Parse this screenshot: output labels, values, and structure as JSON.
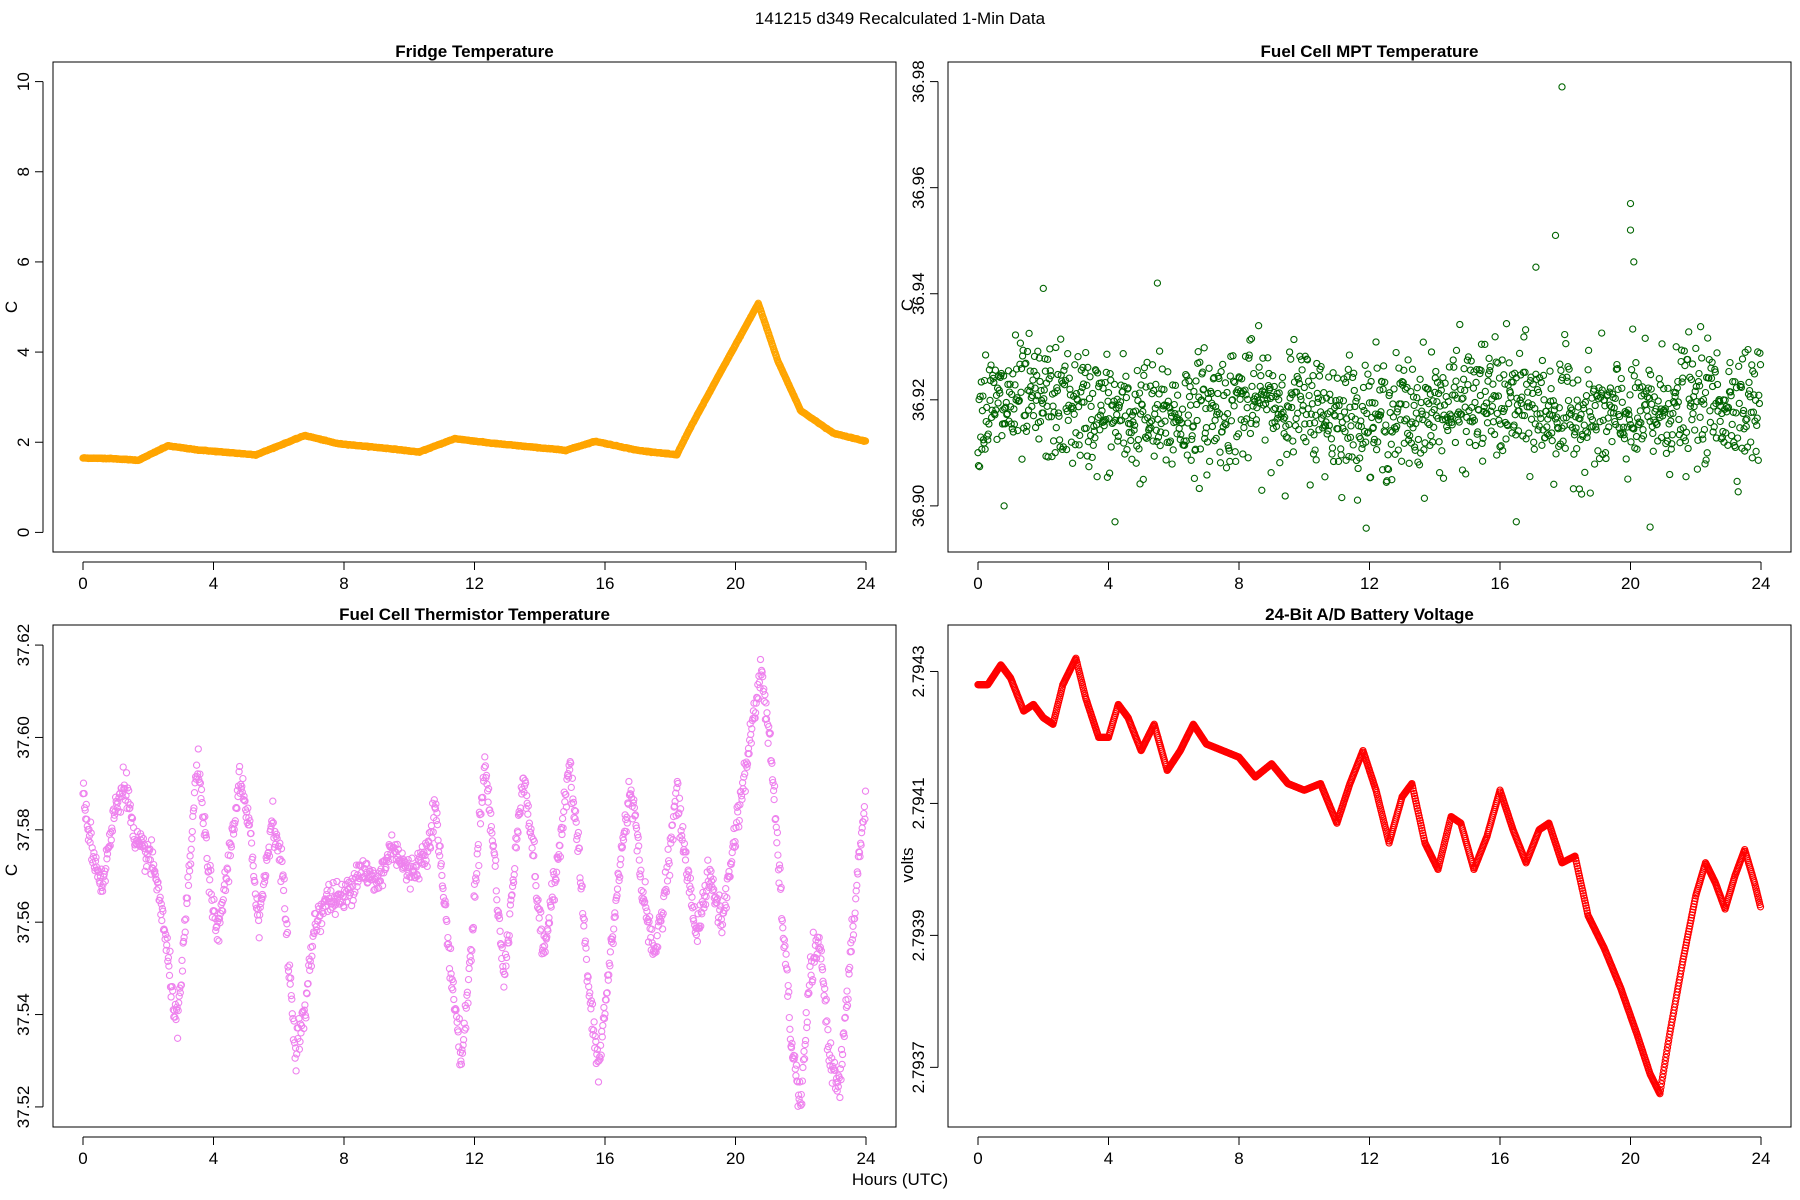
{
  "figure": {
    "suptitle": "141215   d349   Recalculated 1-Min Data",
    "xlabel": "Hours (UTC)"
  },
  "chart_data": [
    {
      "type": "scatter",
      "title": "Fridge Temperature",
      "xlabel": "",
      "ylabel": "C",
      "color": "#FFA500",
      "xlim": [
        0,
        24
      ],
      "ylim": [
        0,
        10
      ],
      "xticks": [
        0,
        4,
        8,
        12,
        16,
        20,
        24
      ],
      "yticks": [
        0,
        2,
        4,
        6,
        8,
        10
      ],
      "ytick_labels": [
        "0",
        "2",
        "4",
        "6",
        "8",
        "10"
      ],
      "keypoints": [
        [
          0,
          1.65
        ],
        [
          0.8,
          1.64
        ],
        [
          1.7,
          1.6
        ],
        [
          2.6,
          1.92
        ],
        [
          3.5,
          1.83
        ],
        [
          5.3,
          1.72
        ],
        [
          6.8,
          2.15
        ],
        [
          7.8,
          1.97
        ],
        [
          9.5,
          1.85
        ],
        [
          10.3,
          1.78
        ],
        [
          11.4,
          2.08
        ],
        [
          12.5,
          1.98
        ],
        [
          14.8,
          1.82
        ],
        [
          15.7,
          2.02
        ],
        [
          17.0,
          1.82
        ],
        [
          18.2,
          1.72
        ],
        [
          18.6,
          2.3
        ],
        [
          19.5,
          3.5
        ],
        [
          20.7,
          5.08
        ],
        [
          21.3,
          3.8
        ],
        [
          22.0,
          2.7
        ],
        [
          23.0,
          2.2
        ],
        [
          24,
          2.02
        ]
      ]
    },
    {
      "type": "scatter",
      "title": "Fuel Cell MPT Temperature",
      "xlabel": "",
      "ylabel": "C",
      "color": "#006400",
      "xlim": [
        0,
        24
      ],
      "ylim": [
        36.895,
        36.98
      ],
      "xticks": [
        0,
        4,
        8,
        12,
        16,
        20,
        24
      ],
      "yticks": [
        36.9,
        36.92,
        36.94,
        36.96,
        36.98
      ],
      "ytick_labels": [
        "36.90",
        "36.92",
        "36.94",
        "36.96",
        "36.98"
      ],
      "center": 36.918,
      "spread": 0.0085,
      "outliers": [
        [
          17.9,
          36.979
        ],
        [
          17.7,
          36.951
        ],
        [
          20.0,
          36.957
        ],
        [
          20.0,
          36.952
        ],
        [
          20.1,
          36.946
        ],
        [
          17.1,
          36.945
        ],
        [
          5.5,
          36.942
        ],
        [
          2.0,
          36.941
        ],
        [
          20.6,
          36.896
        ],
        [
          4.2,
          36.897
        ],
        [
          0.8,
          36.9
        ],
        [
          16.5,
          36.897
        ]
      ]
    },
    {
      "type": "scatter",
      "title": "Fuel Cell Thermistor Temperature",
      "xlabel": "",
      "ylabel": "C",
      "color": "#EE82EE",
      "xlim": [
        0,
        24
      ],
      "ylim": [
        37.52,
        37.62
      ],
      "xticks": [
        0,
        4,
        8,
        12,
        16,
        20,
        24
      ],
      "yticks": [
        37.52,
        37.54,
        37.56,
        37.58,
        37.6,
        37.62
      ],
      "ytick_labels": [
        "37.52",
        "37.54",
        "37.56",
        "37.58",
        "37.60",
        "37.62"
      ],
      "keypoints": [
        [
          0,
          37.588
        ],
        [
          0.3,
          37.575
        ],
        [
          0.6,
          37.568
        ],
        [
          1.0,
          37.585
        ],
        [
          1.3,
          37.591
        ],
        [
          1.6,
          37.576
        ],
        [
          2.0,
          37.575
        ],
        [
          2.3,
          37.568
        ],
        [
          2.6,
          37.552
        ],
        [
          2.9,
          37.537
        ],
        [
          3.2,
          37.565
        ],
        [
          3.5,
          37.595
        ],
        [
          3.8,
          37.575
        ],
        [
          4.1,
          37.556
        ],
        [
          4.5,
          37.575
        ],
        [
          4.8,
          37.591
        ],
        [
          5.1,
          37.58
        ],
        [
          5.4,
          37.56
        ],
        [
          5.8,
          37.583
        ],
        [
          6.1,
          37.572
        ],
        [
          6.3,
          37.552
        ],
        [
          6.5,
          37.533
        ],
        [
          6.8,
          37.54
        ],
        [
          7.1,
          37.56
        ],
        [
          7.5,
          37.565
        ],
        [
          8.0,
          37.565
        ],
        [
          8.5,
          37.572
        ],
        [
          9.0,
          37.568
        ],
        [
          9.5,
          37.577
        ],
        [
          10.0,
          37.57
        ],
        [
          10.5,
          37.575
        ],
        [
          10.8,
          37.585
        ],
        [
          11.0,
          37.57
        ],
        [
          11.3,
          37.548
        ],
        [
          11.6,
          37.53
        ],
        [
          11.8,
          37.545
        ],
        [
          12.0,
          37.565
        ],
        [
          12.3,
          37.595
        ],
        [
          12.6,
          37.575
        ],
        [
          12.9,
          37.547
        ],
        [
          13.2,
          37.57
        ],
        [
          13.5,
          37.593
        ],
        [
          13.8,
          37.575
        ],
        [
          14.1,
          37.553
        ],
        [
          14.5,
          37.57
        ],
        [
          14.9,
          37.595
        ],
        [
          15.2,
          37.575
        ],
        [
          15.5,
          37.545
        ],
        [
          15.8,
          37.528
        ],
        [
          16.1,
          37.548
        ],
        [
          16.5,
          37.575
        ],
        [
          16.8,
          37.59
        ],
        [
          17.1,
          37.57
        ],
        [
          17.5,
          37.552
        ],
        [
          17.8,
          37.565
        ],
        [
          18.2,
          37.588
        ],
        [
          18.5,
          37.572
        ],
        [
          18.8,
          37.558
        ],
        [
          19.2,
          37.57
        ],
        [
          19.6,
          37.56
        ],
        [
          20.0,
          37.58
        ],
        [
          20.4,
          37.597
        ],
        [
          20.8,
          37.615
        ],
        [
          21.1,
          37.595
        ],
        [
          21.4,
          37.565
        ],
        [
          21.7,
          37.535
        ],
        [
          22.0,
          37.52
        ],
        [
          22.3,
          37.55
        ],
        [
          22.6,
          37.555
        ],
        [
          22.9,
          37.53
        ],
        [
          23.2,
          37.525
        ],
        [
          23.5,
          37.55
        ],
        [
          23.8,
          37.575
        ],
        [
          24,
          37.587
        ]
      ]
    },
    {
      "type": "scatter",
      "title": "24-Bit A/D Battery Voltage",
      "xlabel": "",
      "ylabel": "volts",
      "color": "#FF0000",
      "xlim": [
        0,
        24
      ],
      "ylim": [
        2.79364,
        2.79434
      ],
      "xticks": [
        0,
        4,
        8,
        12,
        16,
        20,
        24
      ],
      "yticks": [
        2.7937,
        2.7939,
        2.7941,
        2.7943
      ],
      "ytick_labels": [
        "2.7937",
        "2.7939",
        "2.7941",
        "2.7943"
      ],
      "keypoints": [
        [
          0,
          2.79428
        ],
        [
          0.3,
          2.79428
        ],
        [
          0.7,
          2.79431
        ],
        [
          1.0,
          2.79429
        ],
        [
          1.4,
          2.79424
        ],
        [
          1.7,
          2.79425
        ],
        [
          2.0,
          2.79423
        ],
        [
          2.3,
          2.79422
        ],
        [
          2.6,
          2.79428
        ],
        [
          3.0,
          2.79432
        ],
        [
          3.3,
          2.79426
        ],
        [
          3.7,
          2.7942
        ],
        [
          4.0,
          2.7942
        ],
        [
          4.3,
          2.79425
        ],
        [
          4.6,
          2.79423
        ],
        [
          5.0,
          2.79418
        ],
        [
          5.4,
          2.79422
        ],
        [
          5.8,
          2.79415
        ],
        [
          6.2,
          2.79418
        ],
        [
          6.6,
          2.79422
        ],
        [
          7.0,
          2.79419
        ],
        [
          7.5,
          2.79418
        ],
        [
          8.0,
          2.79417
        ],
        [
          8.5,
          2.79414
        ],
        [
          9.0,
          2.79416
        ],
        [
          9.5,
          2.79413
        ],
        [
          10.0,
          2.79412
        ],
        [
          10.5,
          2.79413
        ],
        [
          11.0,
          2.79407
        ],
        [
          11.4,
          2.79413
        ],
        [
          11.8,
          2.79418
        ],
        [
          12.2,
          2.79412
        ],
        [
          12.6,
          2.79404
        ],
        [
          13.0,
          2.79411
        ],
        [
          13.3,
          2.79413
        ],
        [
          13.7,
          2.79404
        ],
        [
          14.1,
          2.794
        ],
        [
          14.5,
          2.79408
        ],
        [
          14.8,
          2.79407
        ],
        [
          15.2,
          2.794
        ],
        [
          15.6,
          2.79405
        ],
        [
          16.0,
          2.79412
        ],
        [
          16.4,
          2.79406
        ],
        [
          16.8,
          2.79401
        ],
        [
          17.2,
          2.79406
        ],
        [
          17.5,
          2.79407
        ],
        [
          17.9,
          2.79401
        ],
        [
          18.3,
          2.79402
        ],
        [
          18.7,
          2.79393
        ],
        [
          19.2,
          2.79388
        ],
        [
          19.7,
          2.79382
        ],
        [
          20.2,
          2.79375
        ],
        [
          20.6,
          2.79369
        ],
        [
          20.9,
          2.79366
        ],
        [
          21.2,
          2.79375
        ],
        [
          21.6,
          2.79386
        ],
        [
          22.0,
          2.79396
        ],
        [
          22.3,
          2.79401
        ],
        [
          22.6,
          2.79398
        ],
        [
          22.9,
          2.79394
        ],
        [
          23.2,
          2.79399
        ],
        [
          23.5,
          2.79403
        ],
        [
          23.8,
          2.79398
        ],
        [
          24,
          2.79394
        ]
      ]
    }
  ]
}
